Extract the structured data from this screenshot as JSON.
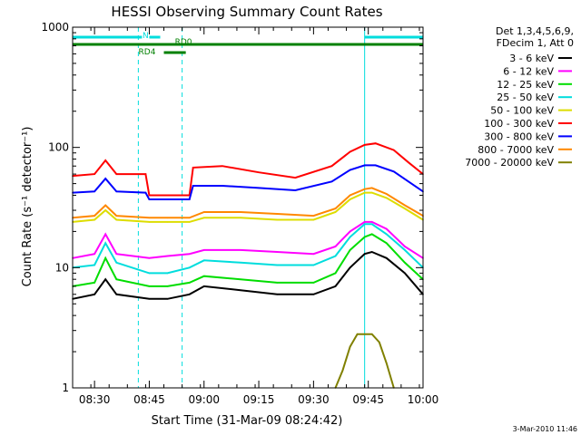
{
  "chart_data": {
    "type": "line",
    "title": "HESSI Observing Summary Count Rates",
    "xlabel": "Start Time (31-Mar-09 08:24:42)",
    "ylabel": "Count Rate (s⁻¹ detector⁻¹)",
    "yscale": "log",
    "ylim": [
      1,
      1000
    ],
    "xlim": [
      "08:24",
      "10:00"
    ],
    "x_ticks": [
      "08:30",
      "08:45",
      "09:00",
      "09:15",
      "09:30",
      "09:45",
      "10:00"
    ],
    "y_ticks": [
      "1",
      "10",
      "100",
      "1000"
    ],
    "footer_date": "3-Mar-2010 11:46",
    "legend": {
      "placement": "right",
      "header": [
        "Det 1,3,4,5,6,9,",
        "FDecim 1, Att 0"
      ]
    },
    "series": [
      {
        "name": "3 - 6 keV",
        "color": "#000000",
        "x": [
          "08:24",
          "08:30",
          "08:33",
          "08:36",
          "08:45",
          "08:50",
          "08:56",
          "09:00",
          "09:10",
          "09:20",
          "09:30",
          "09:36",
          "09:40",
          "09:44",
          "09:46",
          "09:50",
          "09:55",
          "10:00"
        ],
        "values": [
          5.5,
          6,
          8,
          6,
          5.5,
          5.5,
          6,
          7,
          6.5,
          6,
          6,
          7,
          10,
          13,
          13.5,
          12,
          9,
          6
        ]
      },
      {
        "name": "6 - 12 keV",
        "color": "#ff00ff",
        "x": [
          "08:24",
          "08:30",
          "08:33",
          "08:36",
          "08:45",
          "08:50",
          "08:56",
          "09:00",
          "09:10",
          "09:20",
          "09:30",
          "09:36",
          "09:40",
          "09:44",
          "09:46",
          "09:50",
          "09:55",
          "10:00"
        ],
        "values": [
          12,
          13,
          19,
          13,
          12,
          12.5,
          13,
          14,
          14,
          13.5,
          13,
          15,
          20,
          24,
          24,
          21,
          15,
          12
        ]
      },
      {
        "name": "12 - 25 keV",
        "color": "#00dd00",
        "x": [
          "08:24",
          "08:30",
          "08:33",
          "08:36",
          "08:45",
          "08:50",
          "08:56",
          "09:00",
          "09:10",
          "09:20",
          "09:30",
          "09:36",
          "09:40",
          "09:44",
          "09:46",
          "09:50",
          "09:55",
          "10:00"
        ],
        "values": [
          7,
          7.5,
          12,
          8,
          7,
          7,
          7.5,
          8.5,
          8,
          7.5,
          7.5,
          9,
          14,
          18,
          19,
          16,
          11,
          8
        ]
      },
      {
        "name": "25 - 50 keV",
        "color": "#00dddd",
        "x": [
          "08:24",
          "08:30",
          "08:33",
          "08:36",
          "08:45",
          "08:50",
          "08:56",
          "09:00",
          "09:10",
          "09:20",
          "09:30",
          "09:36",
          "09:40",
          "09:44",
          "09:46",
          "09:50",
          "09:55",
          "10:00"
        ],
        "values": [
          10,
          10.5,
          16,
          11,
          9,
          9,
          10,
          11.5,
          11,
          10.5,
          10.5,
          12.5,
          18,
          23,
          23,
          19,
          14,
          10
        ]
      },
      {
        "name": "50 - 100 keV",
        "color": "#dddd00",
        "x": [
          "08:24",
          "08:30",
          "08:33",
          "08:36",
          "08:45",
          "08:50",
          "08:56",
          "09:00",
          "09:10",
          "09:20",
          "09:30",
          "09:36",
          "09:40",
          "09:44",
          "09:46",
          "09:50",
          "09:55",
          "10:00"
        ],
        "values": [
          24,
          25,
          30,
          25,
          24,
          24,
          24,
          26,
          26,
          25,
          25,
          29,
          37,
          42,
          42,
          38,
          31,
          25
        ]
      },
      {
        "name": "100 - 300 keV",
        "color": "#ff0000",
        "x": [
          "08:24",
          "08:30",
          "08:33",
          "08:36",
          "08:44",
          "08:45",
          "08:56",
          "08:57",
          "09:05",
          "09:15",
          "09:25",
          "09:35",
          "09:40",
          "09:44",
          "09:47",
          "09:52",
          "09:56",
          "10:00"
        ],
        "values": [
          58,
          60,
          78,
          60,
          60,
          40,
          40,
          68,
          70,
          62,
          56,
          70,
          92,
          105,
          108,
          95,
          75,
          60
        ]
      },
      {
        "name": "300 - 800 keV",
        "color": "#0000ff",
        "x": [
          "08:24",
          "08:30",
          "08:33",
          "08:36",
          "08:44",
          "08:45",
          "08:56",
          "08:57",
          "09:05",
          "09:15",
          "09:25",
          "09:35",
          "09:40",
          "09:44",
          "09:47",
          "09:52",
          "09:56",
          "10:00"
        ],
        "values": [
          42,
          43,
          55,
          43,
          42,
          37,
          37,
          48,
          48,
          46,
          44,
          52,
          65,
          71,
          71,
          63,
          52,
          43
        ]
      },
      {
        "name": "800 - 7000 keV",
        "color": "#ff8800",
        "x": [
          "08:24",
          "08:30",
          "08:33",
          "08:36",
          "08:45",
          "08:50",
          "08:56",
          "09:00",
          "09:10",
          "09:20",
          "09:30",
          "09:36",
          "09:40",
          "09:44",
          "09:46",
          "09:50",
          "09:55",
          "10:00"
        ],
        "values": [
          26,
          27,
          33,
          27,
          26,
          26,
          26,
          29,
          29,
          28,
          27,
          31,
          40,
          45,
          46,
          41,
          33,
          27
        ]
      },
      {
        "name": "7000 - 20000 keV",
        "color": "#808000",
        "x": [
          "09:36",
          "09:38",
          "09:40",
          "09:42",
          "09:44",
          "09:46",
          "09:48",
          "09:50",
          "09:52"
        ],
        "values": [
          1,
          1.4,
          2.2,
          2.8,
          2.8,
          2.8,
          2.4,
          1.6,
          1
        ]
      }
    ],
    "annotations": [
      {
        "label": "N",
        "color": "#00dddd"
      },
      {
        "label": "RD0",
        "color": "#008000"
      },
      {
        "label": "RD4",
        "color": "#008000"
      }
    ]
  }
}
